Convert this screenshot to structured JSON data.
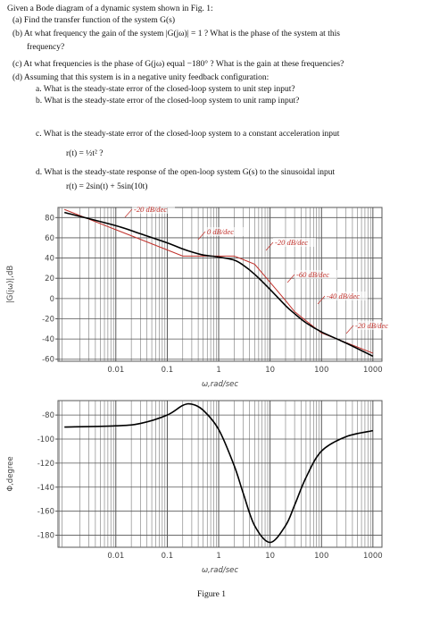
{
  "intro": "Given a Bode diagram of a dynamic system shown in Fig. 1:",
  "lines": [
    "(a) Find the transfer function of the system G(s)",
    "(b) At what frequency the gain of the system |G(jω)| = 1 ? What is the phase of the system at this",
    "frequency?",
    "(c) At what frequencies is the phase of G(jω) equal −180° ? What is the gain at these frequencies?",
    "(d) Assuming that this system is in a negative unity feedback configuration:",
    "a.   What is the steady-state error of the closed-loop system to unit step input?",
    "b.   What is the steady-state error of the closed-loop system to unit ramp input?",
    "c.   What is the steady-state error of the closed-loop system to a constant acceleration input",
    "r(t) = ½t² ?",
    "d.   What is the steady-state response of the open-loop system G(s) to the sinusoidal input",
    "r(t) = 2sin(t) + 5sin(10t)"
  ],
  "caption": "Figure 1",
  "chart_data": [
    {
      "type": "line",
      "xscale": "log",
      "grid": true,
      "xlabel": "ω,rad/sec",
      "ylabel": "|G(jω)|,dB",
      "x": [
        0.001,
        0.01,
        0.03,
        0.1,
        0.2,
        0.3,
        0.5,
        1,
        2,
        3,
        5,
        10,
        20,
        30,
        50,
        100,
        300,
        1000
      ],
      "series": [
        {
          "color": "#c0302a",
          "values": [
            88,
            68,
            58.5,
            48,
            42,
            42,
            42,
            42,
            42,
            38.5,
            34,
            16,
            -2,
            -13,
            -22,
            -34,
            -43.5,
            -54
          ]
        },
        {
          "color": "#000000",
          "values": [
            85,
            72,
            64,
            55,
            49,
            46,
            43,
            41,
            38,
            33,
            24,
            9,
            -7,
            -15,
            -24,
            -33,
            -44,
            -57
          ]
        }
      ],
      "annotations": [
        "-20 dB/dec",
        "0 dB/dec",
        "-20 dB/dec",
        "-60 dB/dec",
        "-40 dB/dec",
        "-20 dB/dec"
      ],
      "xlim": [
        0.00075,
        1500
      ],
      "xticks": [
        0.01,
        0.1,
        1,
        10,
        100,
        1000
      ],
      "ylim": [
        -62,
        90
      ],
      "yticks": [
        -60,
        -40,
        -20,
        0,
        20,
        40,
        60,
        80
      ]
    },
    {
      "type": "line",
      "xscale": "log",
      "grid": true,
      "xlabel": "ω,rad/sec",
      "ylabel": "Φ,degree",
      "x": [
        0.001,
        0.01,
        0.03,
        0.1,
        0.2,
        0.3,
        0.5,
        1,
        2,
        3,
        5,
        10,
        20,
        30,
        50,
        100,
        300,
        1000
      ],
      "series": [
        {
          "color": "#000000",
          "values": [
            -90,
            -89,
            -87,
            -80,
            -72,
            -71,
            -76,
            -92,
            -122,
            -145,
            -172,
            -186,
            -172,
            -155,
            -132,
            -110,
            -98,
            -93
          ]
        }
      ],
      "xlim": [
        0.00075,
        1500
      ],
      "xticks": [
        0.01,
        0.1,
        1,
        10,
        100,
        1000
      ],
      "ylim": [
        -190,
        -68
      ],
      "yticks": [
        -180,
        -160,
        -140,
        -120,
        -100,
        -80
      ]
    }
  ]
}
